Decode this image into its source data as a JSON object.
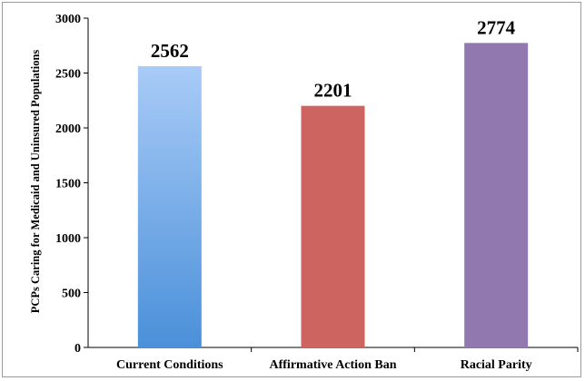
{
  "chart_data": {
    "type": "bar",
    "categories": [
      "Current Conditions",
      "Affirmative Action Ban",
      "Racial Parity"
    ],
    "values": [
      2562,
      2201,
      2774
    ],
    "data_labels": [
      "2562",
      "2201",
      "2774"
    ],
    "ylabel": "PCPs Caring for Medicaid and Uninsured Populations",
    "ylim": [
      0,
      3000
    ],
    "yticks": [
      0,
      500,
      1000,
      1500,
      2000,
      2500,
      3000
    ],
    "grid": false,
    "legend": "none",
    "colors": {
      "bar_1_top": "#a9cbf7",
      "bar_1_bottom": "#4a90d9",
      "bar_2": "#cd6460",
      "bar_3": "#9179b0"
    }
  }
}
